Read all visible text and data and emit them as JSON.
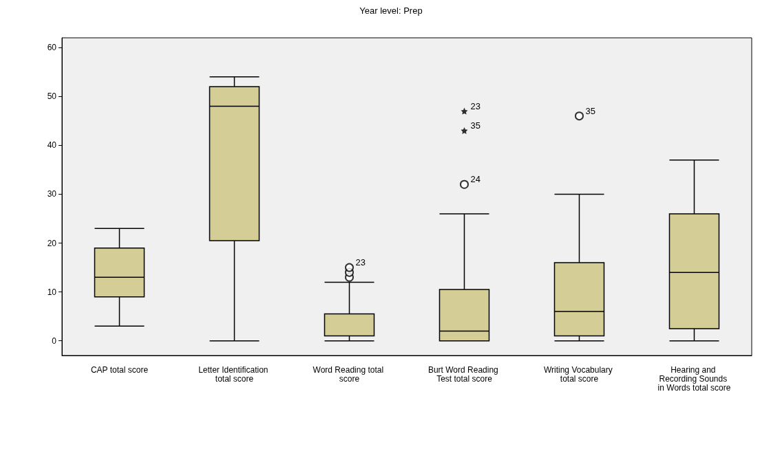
{
  "chart_data": {
    "type": "box",
    "title": "Year level: Prep",
    "categories": [
      "CAP total score",
      "Letter Identification total score",
      "Word Reading total score",
      "Burt Word Reading Test total score",
      "Writing Vocabulary total score",
      "Hearing and Recording Sounds in Words total score"
    ],
    "series": [
      {
        "color": "#d4cd96",
        "boxes": [
          {
            "low": 3,
            "q1": 9,
            "median": 13,
            "q3": 19,
            "high": 23
          },
          {
            "low": 0,
            "q1": 20.5,
            "median": 48,
            "q3": 52,
            "high": 54
          },
          {
            "low": 0,
            "q1": 1,
            "median": 1,
            "q3": 5.5,
            "high": 12
          },
          {
            "low": 0,
            "q1": 0,
            "median": 2,
            "q3": 10.5,
            "high": 26
          },
          {
            "low": 0,
            "q1": 1,
            "median": 6,
            "q3": 16,
            "high": 30
          },
          {
            "low": 0,
            "q1": 2.5,
            "median": 14,
            "q3": 26,
            "high": 37
          }
        ]
      },
      {
        "type": "scatter",
        "marker": "circle",
        "color": "#000000",
        "x": [
          "Word Reading total score",
          "Word Reading total score",
          "Word Reading total score",
          "Burt Word Reading Test total score",
          "Writing Vocabulary total score"
        ],
        "values": [
          13,
          14,
          15,
          32,
          46
        ]
      },
      {
        "type": "scatter",
        "marker": "star",
        "color": "#000000",
        "x": [
          "Burt Word Reading Test total score",
          "Burt Word Reading Test total score"
        ],
        "values": [
          47,
          43
        ]
      }
    ],
    "ylim": [
      -3,
      62
    ],
    "yticks": [
      0,
      10,
      20,
      30,
      40,
      50,
      60
    ],
    "grid": false,
    "annotations": [
      {
        "text": "23",
        "x": "Word Reading total score",
        "y": 15
      },
      {
        "text": "23",
        "x": "Burt Word Reading Test total score",
        "y": 47
      },
      {
        "text": "35",
        "x": "Burt Word Reading Test total score",
        "y": 43
      },
      {
        "text": "24",
        "x": "Burt Word Reading Test total score",
        "y": 32
      },
      {
        "text": "35",
        "x": "Writing Vocabulary total score",
        "y": 46
      }
    ]
  }
}
